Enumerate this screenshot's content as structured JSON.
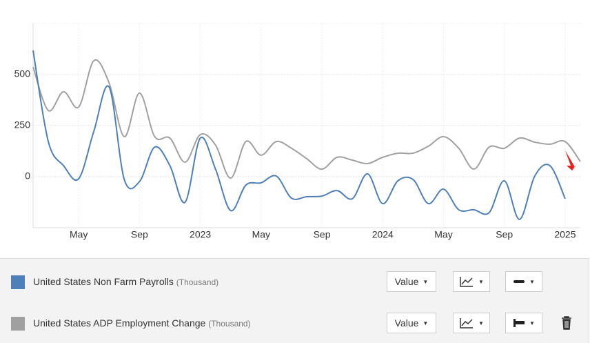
{
  "chart_data": {
    "type": "line",
    "categories": [
      null,
      null,
      null,
      "May",
      null,
      null,
      null,
      "Sep",
      null,
      null,
      null,
      "2023",
      null,
      null,
      null,
      "May",
      null,
      null,
      null,
      "Sep",
      null,
      null,
      null,
      "2024",
      null,
      null,
      null,
      "May",
      null,
      null,
      null,
      "Sep",
      null,
      null,
      null,
      "2025",
      null
    ],
    "ylim": [
      -250,
      750
    ],
    "yticks": [
      0,
      250,
      500
    ],
    "grid": true,
    "series": [
      {
        "name": "United States Non Farm Payrolls",
        "unit": "(Thousand)",
        "mode": "Value",
        "color": "#4e7fb8",
        "values": [
          618,
          172,
          54,
          -10,
          223,
          439,
          -14,
          -24,
          145,
          54,
          -125,
          189,
          37,
          -166,
          -41,
          -30,
          3,
          -105,
          -98,
          -95,
          -68,
          -108,
          14,
          -132,
          -20,
          -14,
          -132,
          -61,
          -162,
          -162,
          -176,
          -20,
          -209,
          3,
          54,
          -108,
          null
        ]
      },
      {
        "name": "United States ADP Employment Change",
        "unit": "(Thousand)",
        "mode": "Value",
        "color": "#a0a0a0",
        "values": [
          537,
          324,
          416,
          341,
          568,
          459,
          196,
          409,
          196,
          189,
          71,
          206,
          155,
          -7,
          172,
          105,
          172,
          139,
          88,
          37,
          95,
          81,
          64,
          95,
          115,
          115,
          149,
          196,
          139,
          37,
          145,
          139,
          189,
          169,
          159,
          172,
          74
        ]
      }
    ]
  }
}
